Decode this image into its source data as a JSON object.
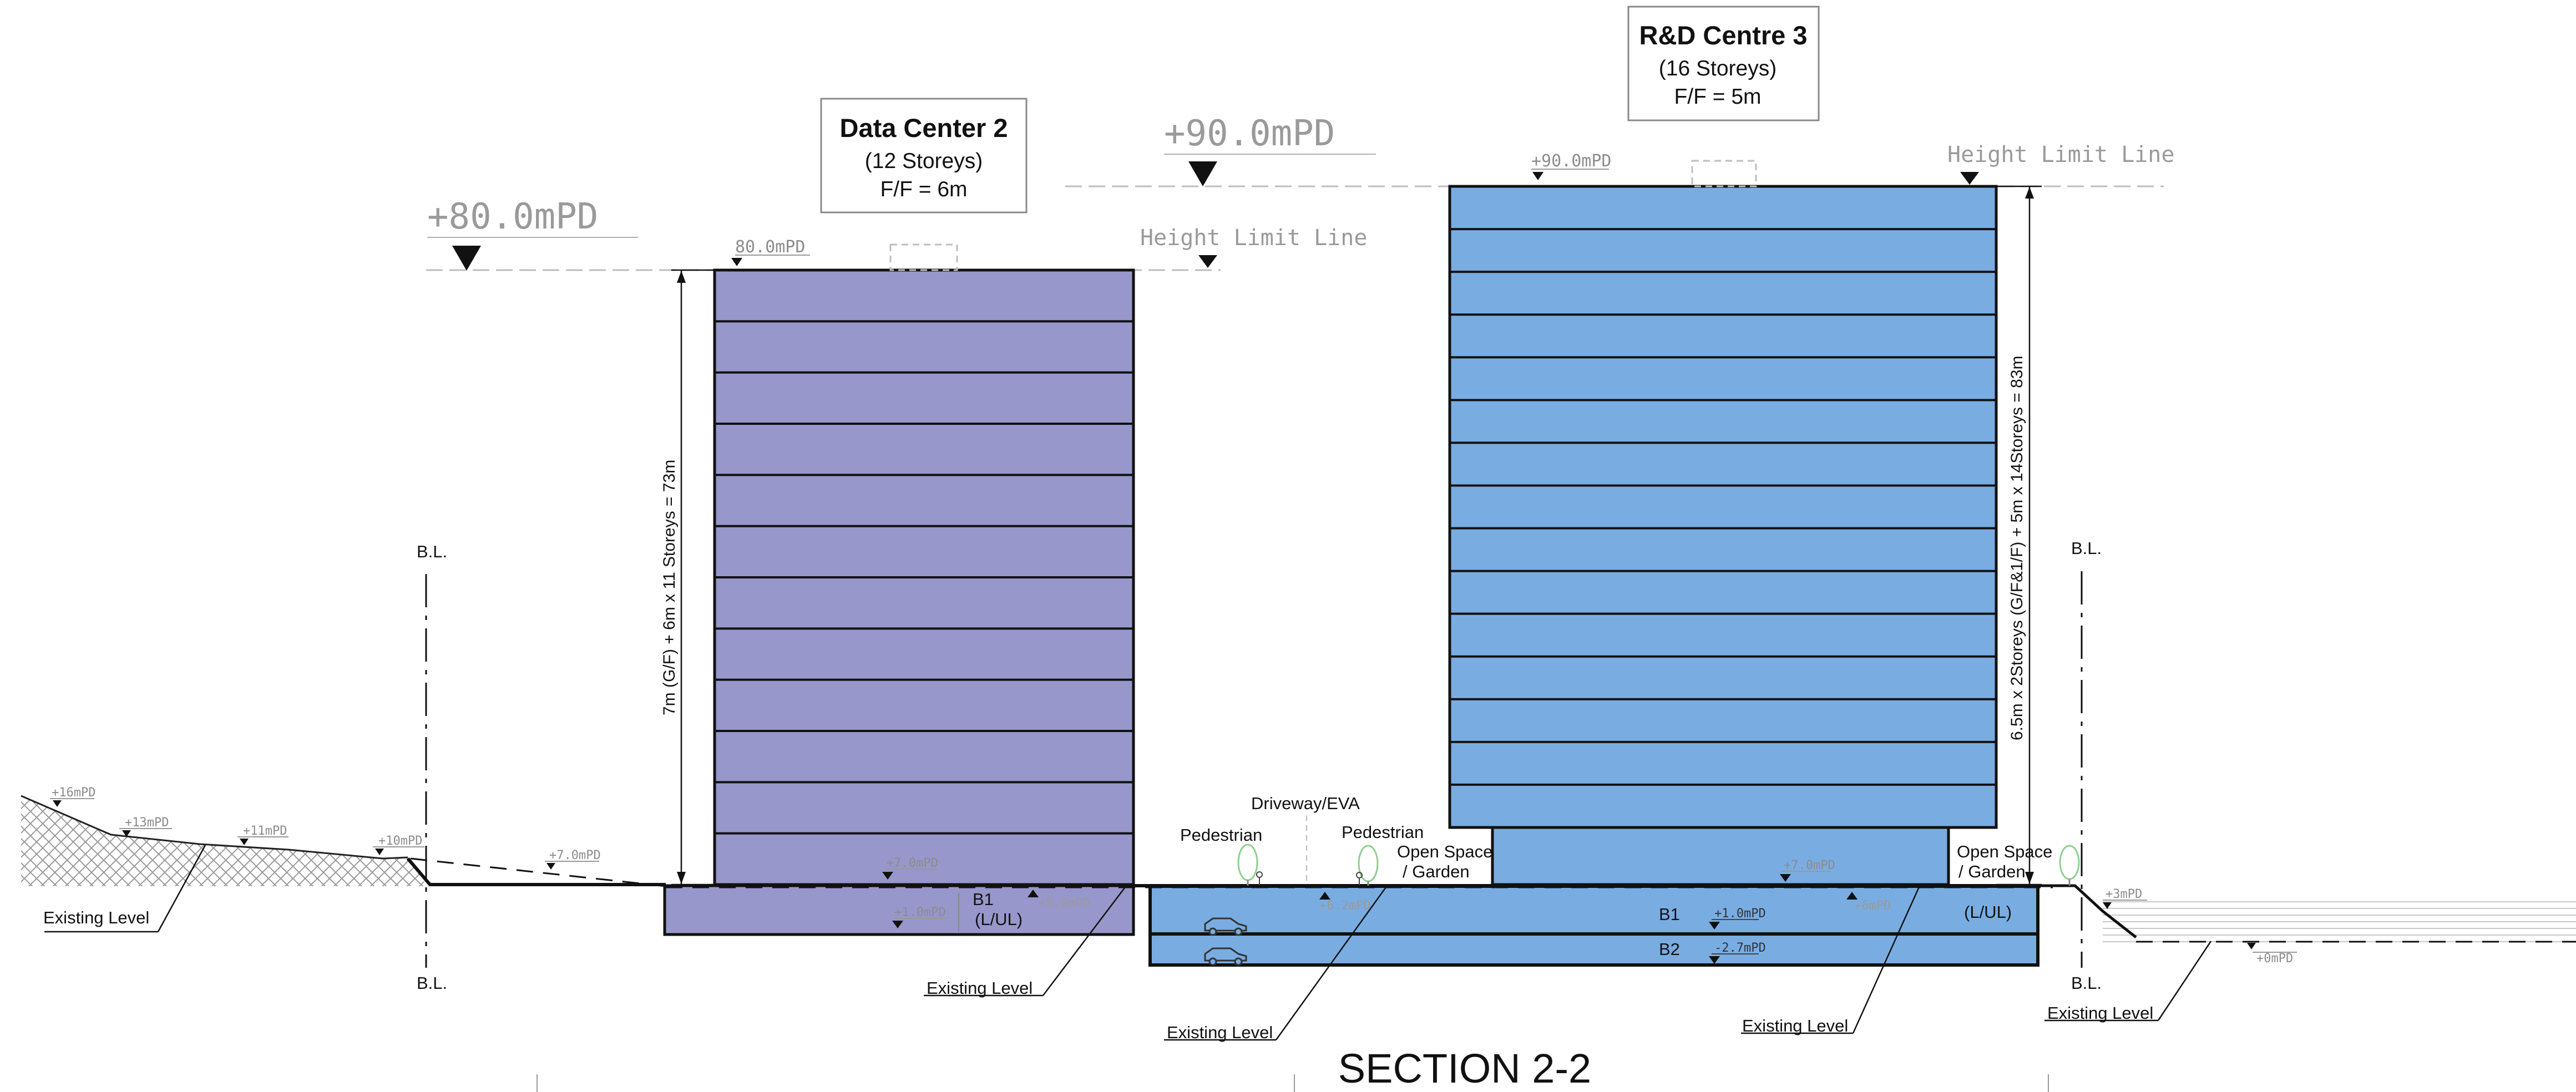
{
  "colors": {
    "data_center": "#9797cb",
    "rd_centre": "#79ade2",
    "ground": "#111111",
    "dashed": "#bdbdbd",
    "hatch": "#9a9a9a",
    "level_text": "#8c8c8c"
  },
  "section_title": "SECTION 2-2",
  "data_center": {
    "title": "Data Center 2",
    "storeys": "(12 Storeys)",
    "ff": "F/F = 6m",
    "height_label": "+80.0mPD",
    "roof_level": "80.0mPD",
    "height_limit": "Height  Limit  Line",
    "dimension": "7m (G/F) + 6m x 11 Storeys  = 73m",
    "ground_level": "+7.0mPD",
    "b1_level": "+1.0mPD",
    "b1_label": "B1",
    "b1_use": "(L/UL)",
    "ramp_level": "+5.0mPD",
    "storey_count": 12
  },
  "rd_centre": {
    "title": "R&D Centre 3",
    "storeys": "(16  Storeys)",
    "ff": "F/F = 5m",
    "height_label": "+90.0mPD",
    "roof_level": "+90.0mPD",
    "height_limit": "Height  Limit  Line",
    "dimension": "6.5m x 2Storeys (G/F&1/F) + 5m x 14Storeys  = 83m",
    "ground_level": "+7.0mPD",
    "b1_label": "B1",
    "b1_level": "+1.0mPD",
    "b1_use": "(L/UL)",
    "b2_label": "B2",
    "b2_level": "-2.7mPD",
    "ramp_level": "+6.2mPD",
    "ramp_level_2": "+6mPD",
    "storey_count": 16
  },
  "left_site": {
    "bl_top": "B.L.",
    "bl_bottom": "B.L.",
    "levels": [
      "+16mPD",
      "+13mPD",
      "+11mPD",
      "+10mPD",
      "+7.0mPD"
    ],
    "existing_level": "Existing Level"
  },
  "middle": {
    "existing_level_1": "Existing Level",
    "existing_level_2": "Existing Level",
    "existing_level_3": "Existing Level",
    "pedestrian_1": "Pedestrian",
    "driveway": "Driveway/EVA",
    "pedestrian_2": "Pedestrian",
    "open_space_1a": "Open Space",
    "open_space_1b": "/ Garden",
    "open_space_2a": "Open Space",
    "open_space_2b": "/ Garden"
  },
  "right_site": {
    "bl_top": "B.L.",
    "bl_bottom": "B.L.",
    "levels": [
      "+3mPD",
      "+0mPD"
    ],
    "existing_level": "Existing Level"
  }
}
